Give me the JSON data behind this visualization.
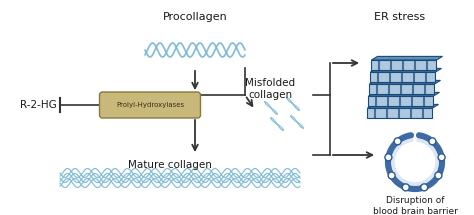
{
  "bg_color": "#ffffff",
  "text_color": "#1a1a1a",
  "labels": {
    "procollagen": "Procollagen",
    "misfolded": "Misfolded\ncollagen",
    "mature": "Mature collagen",
    "er_stress": "ER stress",
    "r2hg": "R-2-HG",
    "prolyl": "Prolyl-Hydroxylases",
    "disruption": "Disruption of\nblood brain barrier"
  },
  "collagen_color": "#7ab8d4",
  "prolyl_box_color": "#c8b87a",
  "prolyl_box_edge": "#8a7840",
  "arrow_color": "#333333",
  "er_color_dark": "#1a4a7a",
  "er_color_light": "#aec8e0",
  "er_color_mid": "#6090b8",
  "bbb_color": "#2a5a9a",
  "bbb_fill": "#b8d0e8"
}
